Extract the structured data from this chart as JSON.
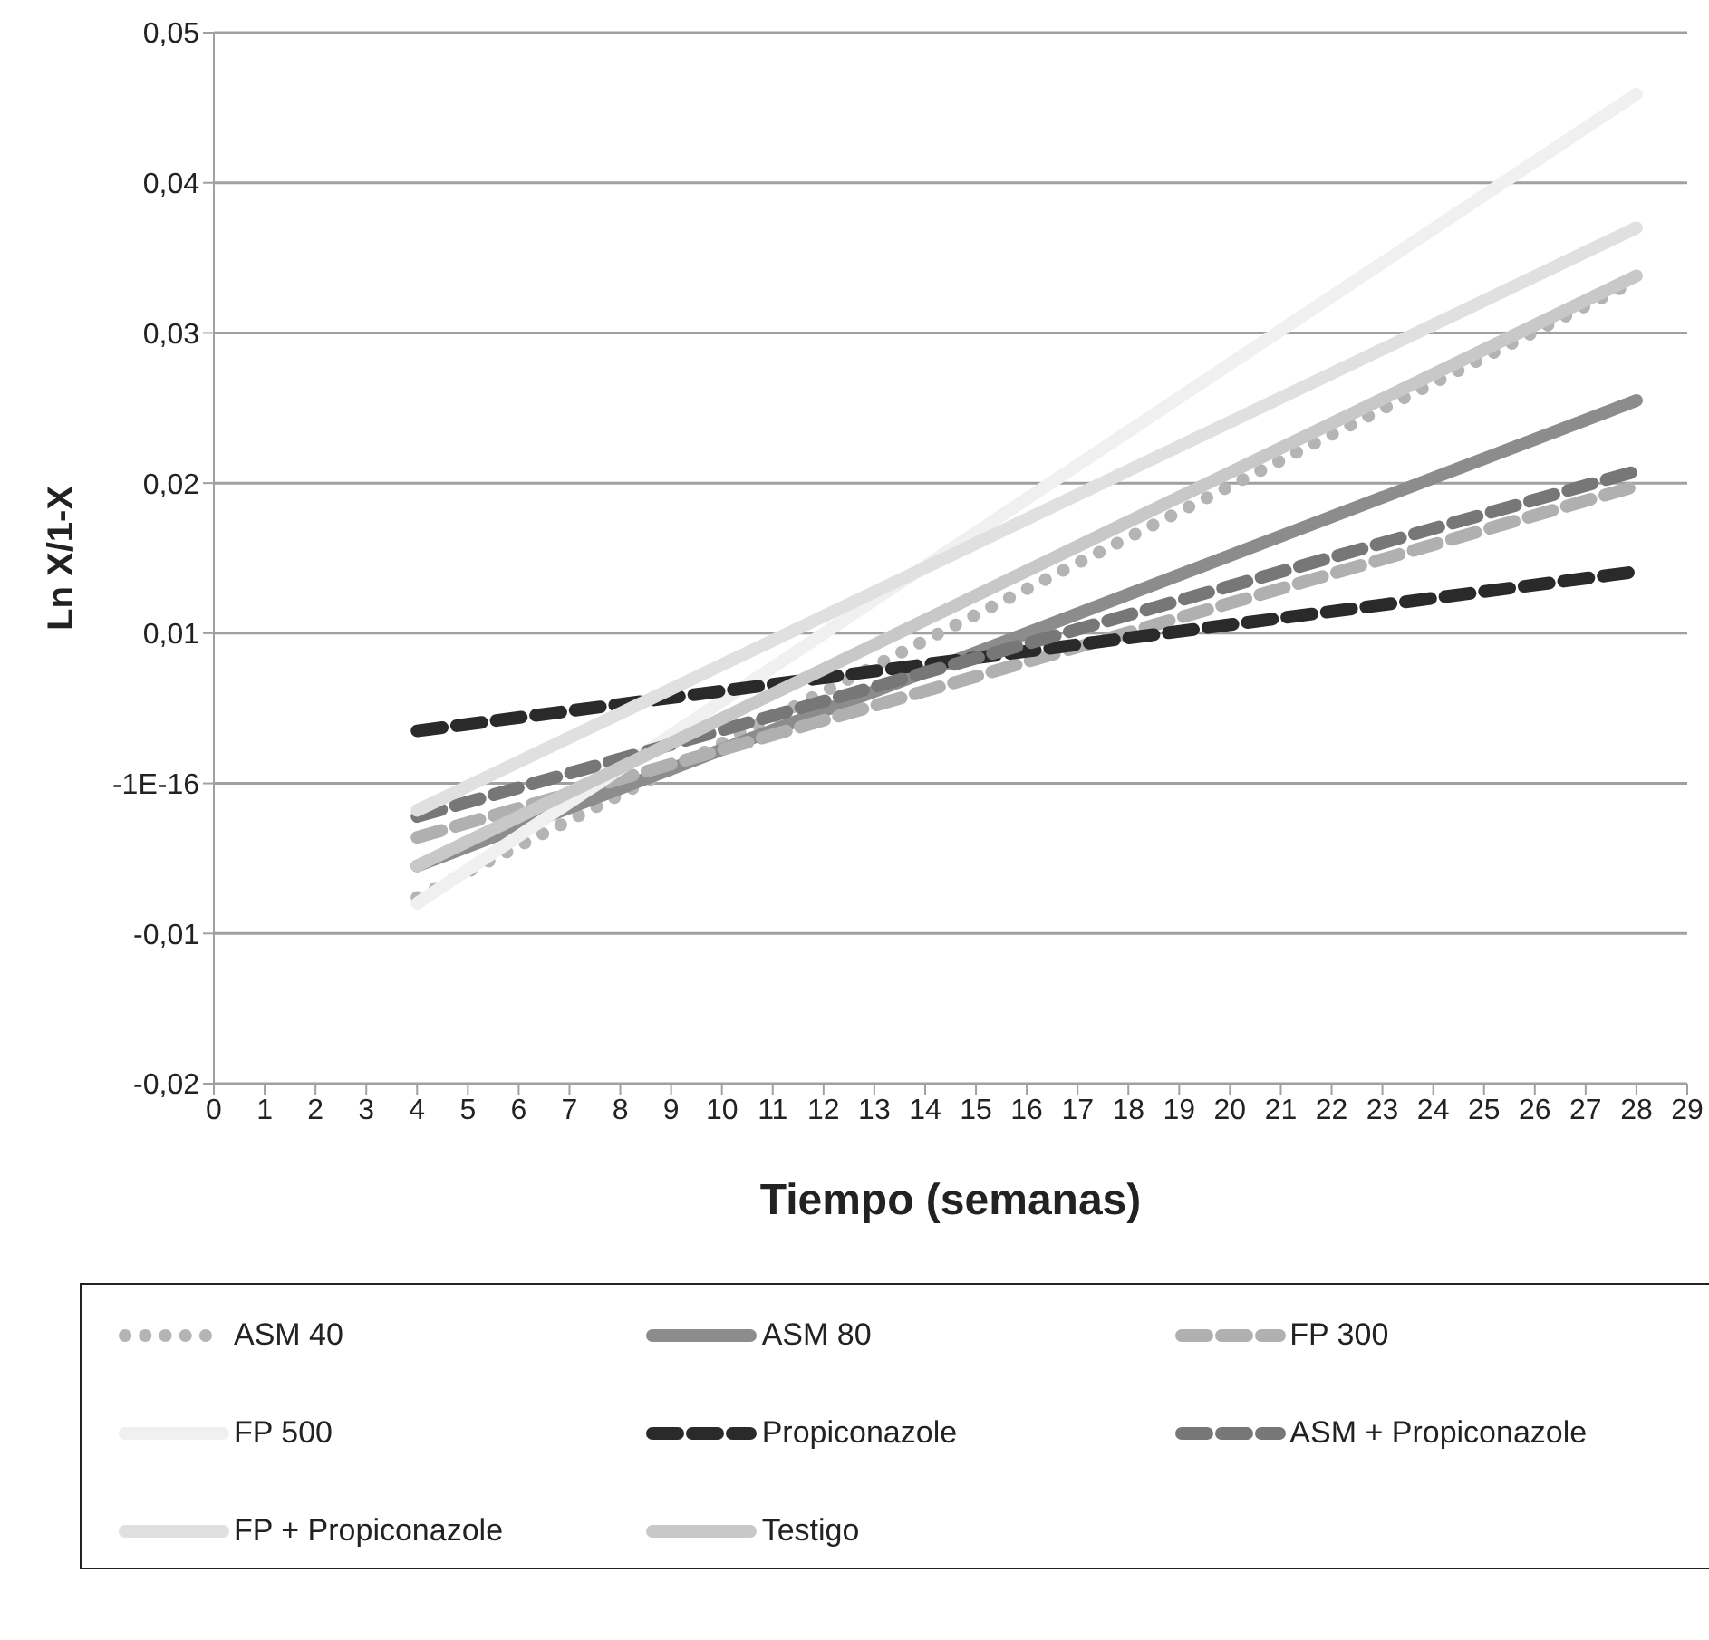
{
  "chart_data": {
    "type": "line",
    "xlabel": "Tiempo (semanas)",
    "ylabel": "Ln X/1-X",
    "x": [
      4,
      28
    ],
    "series": [
      {
        "name": "ASM 40",
        "color": "#b4b4b4",
        "line_style": "dotted",
        "values": [
          -0.0076,
          0.0335
        ]
      },
      {
        "name": "ASM 80",
        "color": "#8c8c8c",
        "line_style": "solid",
        "values": [
          -0.0055,
          0.0255
        ]
      },
      {
        "name": "FP 300",
        "color": "#b0b0b0",
        "line_style": "dashed",
        "values": [
          -0.0036,
          0.0198
        ]
      },
      {
        "name": "FP 500",
        "color": "#f0f0f0",
        "line_style": "solid",
        "values": [
          -0.008,
          0.0459
        ]
      },
      {
        "name": "Propiconazole",
        "color": "#2a2a2a",
        "line_style": "dashed",
        "values": [
          0.0035,
          0.0141
        ]
      },
      {
        "name": "ASM + Propiconazole",
        "color": "#777777",
        "line_style": "dashed",
        "values": [
          -0.0022,
          0.0208
        ]
      },
      {
        "name": "FP + Propiconazole",
        "color": "#e0e0e0",
        "line_style": "solid",
        "values": [
          -0.0018,
          0.037
        ]
      },
      {
        "name": "Testigo",
        "color": "#c8c8c8",
        "line_style": "solid",
        "values": [
          -0.0055,
          0.0338
        ]
      }
    ],
    "xlim": [
      0,
      29
    ],
    "xticks": [
      0,
      1,
      2,
      3,
      4,
      5,
      6,
      7,
      8,
      9,
      10,
      11,
      12,
      13,
      14,
      15,
      16,
      17,
      18,
      19,
      20,
      21,
      22,
      23,
      24,
      25,
      26,
      27,
      28,
      29
    ],
    "ylim": [
      -0.02,
      0.05
    ],
    "yticks": [
      {
        "value": -0.02,
        "label": "-0,02"
      },
      {
        "value": -0.01,
        "label": "-0,01"
      },
      {
        "value": 0,
        "label": "-1E-16"
      },
      {
        "value": 0.01,
        "label": "0,01"
      },
      {
        "value": 0.02,
        "label": "0,02"
      },
      {
        "value": 0.03,
        "label": "0,03"
      },
      {
        "value": 0.04,
        "label": "0,04"
      },
      {
        "value": 0.05,
        "label": "0,05"
      }
    ],
    "grid": "y",
    "legend": "bottom",
    "marker": "none"
  }
}
